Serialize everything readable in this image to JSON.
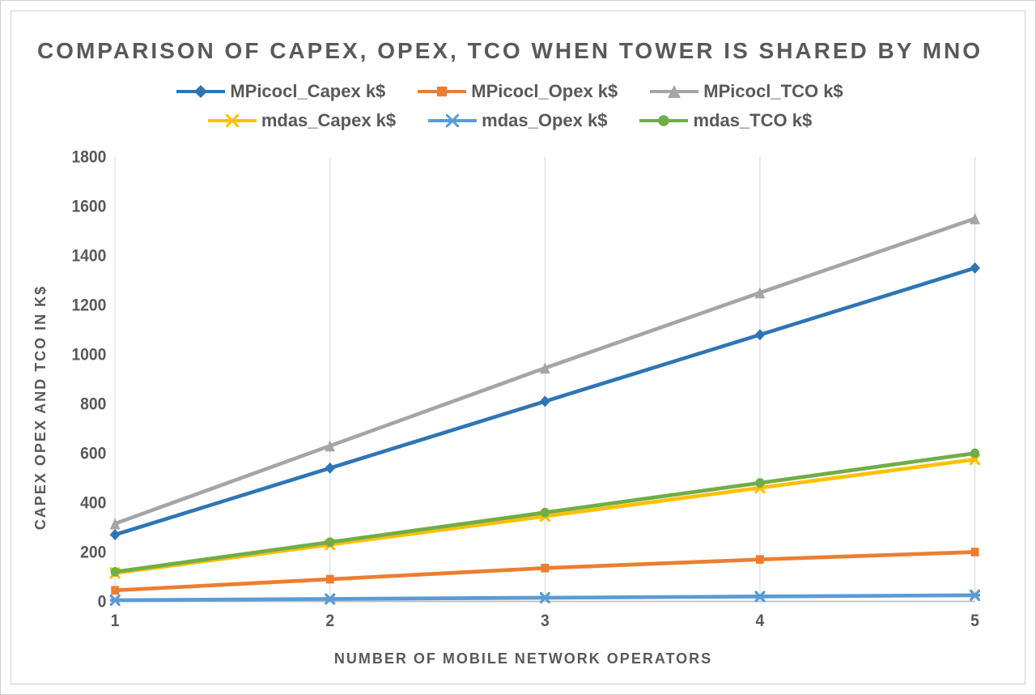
{
  "chart": {
    "type": "line",
    "title": "COMPARISON OF CAPEX, OPEX, TCO WHEN TOWER IS SHARED BY MNO",
    "title_fontsize": 28,
    "title_color": "#595959",
    "xlabel": "NUMBER OF MOBILE NETWORK OPERATORS",
    "ylabel": "CAPEX OPEX AND TCO IN  K$",
    "axis_label_fontsize": 18,
    "axis_label_color": "#595959",
    "tick_fontsize": 18,
    "tick_color": "#595959",
    "legend_fontsize": 22,
    "legend_color": "#595959",
    "background_color": "#ffffff",
    "grid_color": "#d9d9d9",
    "axis_line_color": "#bfbfbf",
    "border_color": "#d0d0d0",
    "xlim": [
      1,
      5
    ],
    "ylim": [
      0,
      1800
    ],
    "ytick_step": 200,
    "x_categories": [
      "1",
      "2",
      "3",
      "4",
      "5"
    ],
    "line_width": 4,
    "marker_size": 12,
    "series": [
      {
        "name": "MPicocl_Capex k$",
        "color": "#2e75b6",
        "marker": "diamond",
        "values": [
          270,
          540,
          810,
          1080,
          1350
        ]
      },
      {
        "name": "MPicocl_Opex k$",
        "color": "#ed7d31",
        "marker": "square",
        "values": [
          45,
          90,
          135,
          170,
          200
        ]
      },
      {
        "name": "MPicocl_TCO k$",
        "color": "#a5a5a5",
        "marker": "triangle",
        "values": [
          315,
          630,
          945,
          1250,
          1550
        ]
      },
      {
        "name": "mdas_Capex k$",
        "color": "#ffc000",
        "marker": "x",
        "values": [
          115,
          230,
          345,
          460,
          575
        ]
      },
      {
        "name": "mdas_Opex k$",
        "color": "#5b9bd5",
        "marker": "asterisk",
        "values": [
          5,
          10,
          15,
          20,
          25
        ]
      },
      {
        "name": "mdas_TCO k$",
        "color": "#70ad47",
        "marker": "circle",
        "values": [
          120,
          240,
          360,
          480,
          600
        ]
      }
    ]
  }
}
